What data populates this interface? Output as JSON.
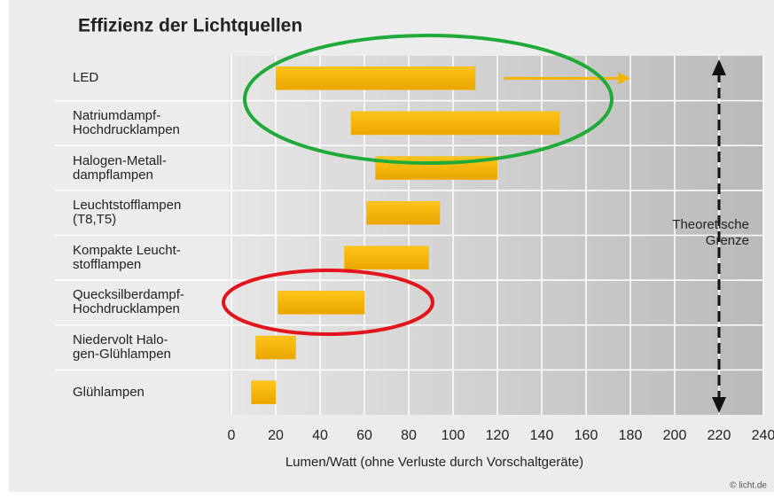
{
  "chart_data": {
    "type": "range-bar",
    "title": "Effizienz der Lichtquellen",
    "categories": [
      "LED",
      "Natriumdampf-\nHochdrucklampen",
      "Halogen-Metall-\ndampflampen",
      "Leuchtstofflampen\n(T8,T5)",
      "Kompakte Leucht-\nstofflampen",
      "Quecksilberdampf-\nHochdrucklampen",
      "Niedervolt Halo-\ngen-Glühlampen",
      "Glühlampen"
    ],
    "low": [
      20,
      54,
      65,
      61,
      51,
      21,
      11,
      9
    ],
    "high": [
      110,
      148,
      120,
      94,
      89,
      60,
      29,
      20
    ],
    "color": "#f6b300",
    "trend_arrow": {
      "category": 0,
      "from": 123,
      "to": 180
    },
    "limit": {
      "value": 220,
      "label": "Theoretische\nGrenze"
    },
    "xlabel": "Lumen/Watt (ohne Verluste durch Vorschaltgeräte)",
    "xlim": [
      0,
      240
    ],
    "xticks": [
      0,
      20,
      40,
      60,
      80,
      100,
      120,
      140,
      160,
      180,
      200,
      220,
      240
    ],
    "grid": true,
    "credit": "© licht.de"
  }
}
